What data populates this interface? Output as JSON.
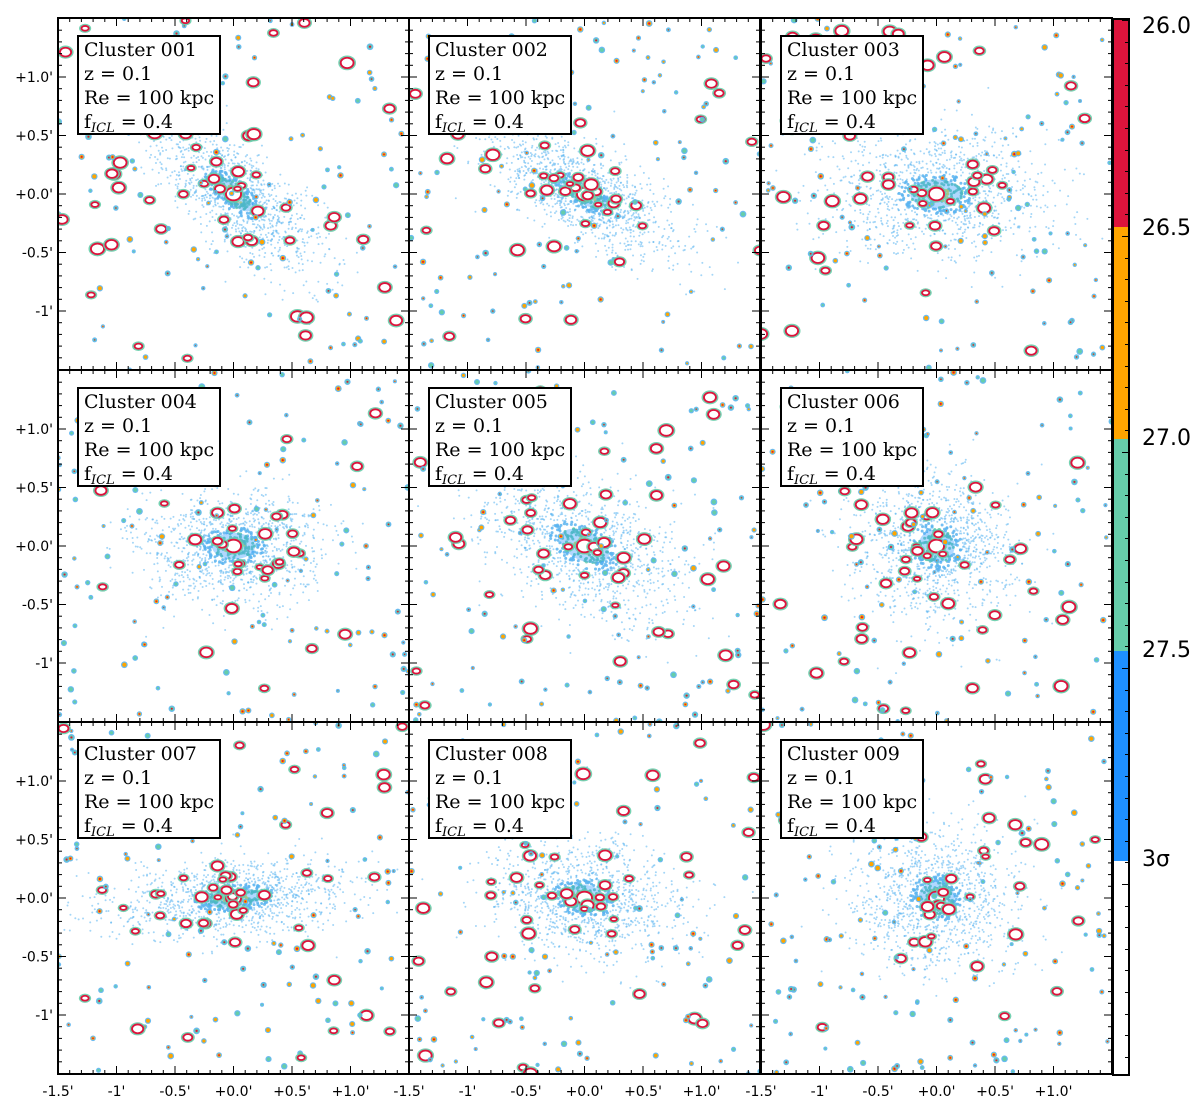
{
  "panels": [
    {
      "id": "Cluster 001",
      "z": "z = 0.1",
      "re": "Re = 100 kpc",
      "ficl_prefix": "f",
      "ficl_sub": "ICL",
      "ficl_value": " = 0.4",
      "cluster_shape": "elongated",
      "pa_deg": -40
    },
    {
      "id": "Cluster 002",
      "z": "z = 0.1",
      "re": "Re = 100 kpc",
      "ficl_prefix": "f",
      "ficl_sub": "ICL",
      "ficl_value": " = 0.4",
      "cluster_shape": "elongated",
      "pa_deg": -30
    },
    {
      "id": "Cluster 003",
      "z": "z = 0.1",
      "re": "Re = 100 kpc",
      "ficl_prefix": "f",
      "ficl_sub": "ICL",
      "ficl_value": " = 0.4",
      "cluster_shape": "elliptical",
      "pa_deg": 0
    },
    {
      "id": "Cluster 004",
      "z": "z = 0.1",
      "re": "Re = 100 kpc",
      "ficl_prefix": "f",
      "ficl_sub": "ICL",
      "ficl_value": " = 0.4",
      "cluster_shape": "vertical",
      "pa_deg": 90
    },
    {
      "id": "Cluster 005",
      "z": "z = 0.1",
      "re": "Re = 100 kpc",
      "ficl_prefix": "f",
      "ficl_sub": "ICL",
      "ficl_value": " = 0.4",
      "cluster_shape": "elliptical",
      "pa_deg": -25
    },
    {
      "id": "Cluster 006",
      "z": "z = 0.1",
      "re": "Re = 100 kpc",
      "ficl_prefix": "f",
      "ficl_sub": "ICL",
      "ficl_value": " = 0.4",
      "cluster_shape": "round",
      "pa_deg": 0
    },
    {
      "id": "Cluster 007",
      "z": "z = 0.1",
      "re": "Re = 100 kpc",
      "ficl_prefix": "f",
      "ficl_sub": "ICL",
      "ficl_value": " = 0.4",
      "cluster_shape": "horizontal",
      "pa_deg": 5
    },
    {
      "id": "Cluster 008",
      "z": "z = 0.1",
      "re": "Re = 100 kpc",
      "ficl_prefix": "f",
      "ficl_sub": "ICL",
      "ficl_value": " = 0.4",
      "cluster_shape": "vertical",
      "pa_deg": 80
    },
    {
      "id": "Cluster 009",
      "z": "z = 0.1",
      "re": "Re = 100 kpc",
      "ficl_prefix": "f",
      "ficl_sub": "ICL",
      "ficl_value": " = 0.4",
      "cluster_shape": "round",
      "pa_deg": 0
    }
  ],
  "axes": {
    "y_ticks": [
      "+1.0'",
      "+0.5'",
      "+0.0'",
      "-0.5'",
      "-1'",
      "-1.5'"
    ],
    "x_ticks": [
      "-1.5'",
      "-1'",
      "-0.5'",
      "+0.0'",
      "+0.5'",
      "+1.0'"
    ]
  },
  "colorbar": {
    "labels": [
      "26.0",
      "26.5",
      "27.0",
      "27.5",
      "3σ"
    ],
    "colors": {
      "red": "#dc143c",
      "orange": "#ffa500",
      "green": "#66cdaa",
      "blue": "#1e90ff",
      "white": "#ffffff"
    }
  },
  "colors": {
    "faint": "#5ab4f0",
    "mid": "#1e90ff",
    "green": "#66cdaa",
    "yellow": "#f0e040",
    "orange": "#ffa500",
    "red": "#dc143c"
  }
}
